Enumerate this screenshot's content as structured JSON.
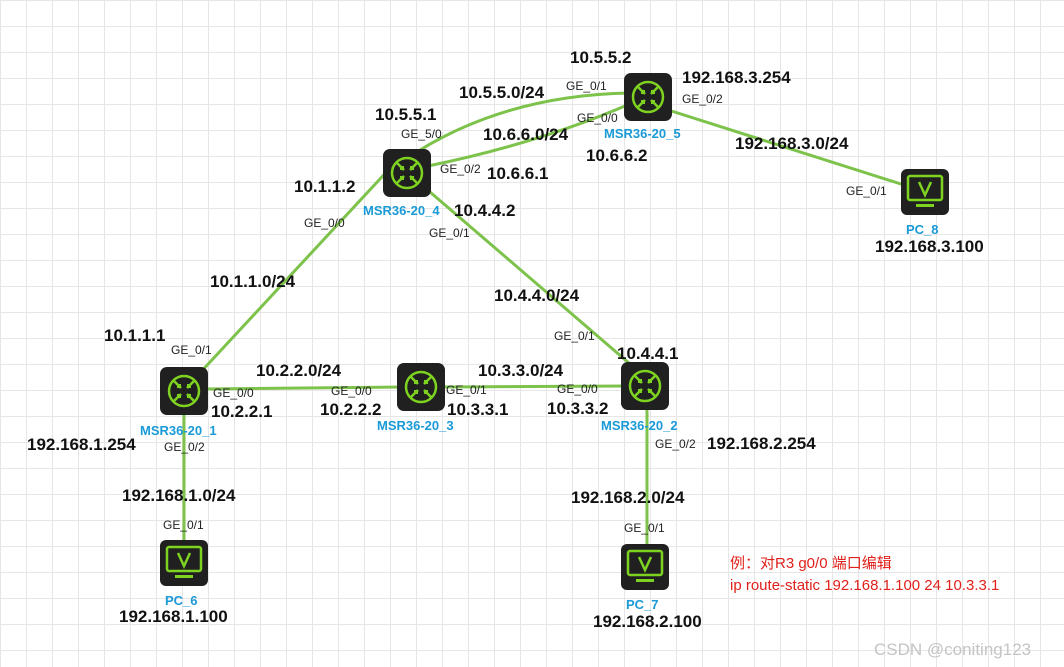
{
  "colors": {
    "link": "#7dc24b",
    "router_body": "#202020",
    "router_icon": "#7ed321",
    "pc_icon": "#7ed321",
    "device_label": "#1a9ad6",
    "note": "#e0201a"
  },
  "devices": {
    "r1": {
      "name": "MSR36-20_1",
      "icon": "router-icon"
    },
    "r2": {
      "name": "MSR36-20_2",
      "icon": "router-icon"
    },
    "r3": {
      "name": "MSR36-20_3",
      "icon": "router-icon"
    },
    "r4": {
      "name": "MSR36-20_4",
      "icon": "router-icon"
    },
    "r5": {
      "name": "MSR36-20_5",
      "icon": "router-icon"
    },
    "pc6": {
      "name": "PC_6",
      "ip": "192.168.1.100",
      "icon": "pc-icon"
    },
    "pc7": {
      "name": "PC_7",
      "ip": "192.168.2.100",
      "icon": "pc-icon"
    },
    "pc8": {
      "name": "PC_8",
      "ip": "192.168.3.100",
      "icon": "pc-icon"
    }
  },
  "links": {
    "r1_r4": {
      "network": "10.1.1.0/24",
      "a_port": "GE_0/1",
      "a_ip": "10.1.1.1",
      "b_port": "GE_0/0",
      "b_ip": "10.1.1.2"
    },
    "r1_r3": {
      "network": "10.2.2.0/24",
      "a_port": "GE_0/0",
      "a_ip": "10.2.2.1",
      "b_port": "GE_0/0",
      "b_ip": "10.2.2.2"
    },
    "r3_r2": {
      "network": "10.3.3.0/24",
      "a_port": "GE_0/1",
      "a_ip": "10.3.3.1",
      "b_port": "GE_0/0",
      "b_ip": "10.3.3.2"
    },
    "r4_r2": {
      "network": "10.4.4.0/24",
      "a_port": "GE_0/1",
      "a_ip": "10.4.4.2",
      "b_port": "GE_0/1",
      "b_ip": "10.4.4.1"
    },
    "r4_r5_a": {
      "network": "10.5.5.0/24",
      "a_port": "GE_5/0",
      "a_ip": "10.5.5.1",
      "b_port": "GE_0/1",
      "b_ip": "10.5.5.2"
    },
    "r4_r5_b": {
      "network": "10.6.6.0/24",
      "a_port": "GE_0/2",
      "a_ip": "10.6.6.1",
      "b_port": "GE_0/0",
      "b_ip": "10.6.6.2"
    },
    "r5_pc8": {
      "network": "192.168.3.0/24",
      "a_port": "GE_0/2",
      "a_ip": "192.168.3.254",
      "b_port": "GE_0/1"
    },
    "r1_pc6": {
      "network": "192.168.1.0/24",
      "a_port": "GE_0/2",
      "a_ip": "192.168.1.254",
      "b_port": "GE_0/1"
    },
    "r2_pc7": {
      "network": "192.168.2.0/24",
      "a_port": "GE_0/2",
      "a_ip": "192.168.2.254",
      "b_port": "GE_0/1"
    }
  },
  "note": {
    "line1": "例：对R3 g0/0 端口编辑",
    "line2": "ip route-static 192.168.1.100 24 10.3.3.1"
  },
  "watermark": "CSDN @coniting123"
}
